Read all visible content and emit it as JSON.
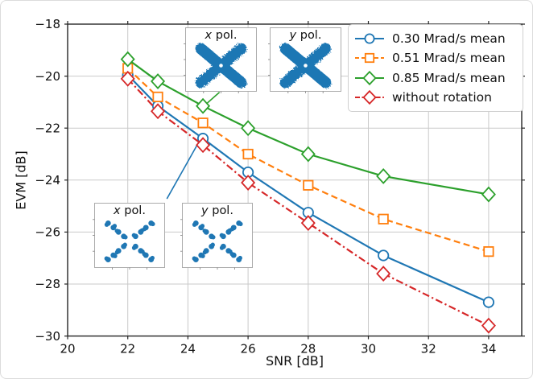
{
  "chart_data": {
    "type": "line",
    "title": "",
    "xlabel": "SNR [dB]",
    "ylabel": "EVM [dB]",
    "x_ticks": [
      20,
      22,
      24,
      26,
      28,
      30,
      32,
      34
    ],
    "y_ticks": [
      -18,
      -20,
      -22,
      -24,
      -26,
      -28,
      -30
    ],
    "xlim": [
      20,
      35.1
    ],
    "ylim": [
      -30,
      -18
    ],
    "grid": true,
    "legend_position": "upper right",
    "x": [
      22,
      23,
      24.5,
      26,
      28,
      30.5,
      34
    ],
    "series": [
      {
        "name": "0.30 Mrad/s mean",
        "color": "#1f77b4",
        "marker": "circle",
        "linestyle": "solid",
        "values": [
          -19.95,
          -21.15,
          -22.4,
          -23.7,
          -25.25,
          -26.9,
          -28.7
        ]
      },
      {
        "name": "0.51 Mrad/s mean",
        "color": "#ff7f0e",
        "marker": "square",
        "linestyle": "dashed",
        "values": [
          -19.7,
          -20.8,
          -21.8,
          -23.0,
          -24.2,
          -25.5,
          -26.75
        ]
      },
      {
        "name": "0.85 Mrad/s mean",
        "color": "#2ca02c",
        "marker": "diamond",
        "linestyle": "solid",
        "values": [
          -19.35,
          -20.2,
          -21.15,
          -22.0,
          -23.0,
          -23.85,
          -24.55
        ]
      },
      {
        "name": "without rotation",
        "color": "#d62728",
        "marker": "diamond",
        "linestyle": "dashdot",
        "values": [
          -20.1,
          -21.35,
          -22.65,
          -24.1,
          -25.65,
          -27.6,
          -29.6
        ]
      }
    ],
    "annotations": [
      {
        "name": "leader-to-top-insets",
        "color": "#2ca02c",
        "from_xy": [
          25.05,
          -20.62
        ],
        "to_xy": [
          24.6,
          -21.08
        ]
      },
      {
        "name": "leader-to-bottom-insets",
        "color": "#1f77b4",
        "from_xy": [
          23.3,
          -24.72
        ],
        "to_xy": [
          24.37,
          -22.52
        ]
      }
    ],
    "insets": {
      "constellation_color": "#1f77b4",
      "top_group": {
        "description": "constellation with rotation (dense fuzzy cross)",
        "items": [
          {
            "label": "x pol."
          },
          {
            "label": "y pol."
          }
        ]
      },
      "bottom_group": {
        "description": "constellation without rotation (discrete symbol clusters)",
        "items": [
          {
            "label": "x pol."
          },
          {
            "label": "y pol."
          }
        ]
      }
    }
  }
}
